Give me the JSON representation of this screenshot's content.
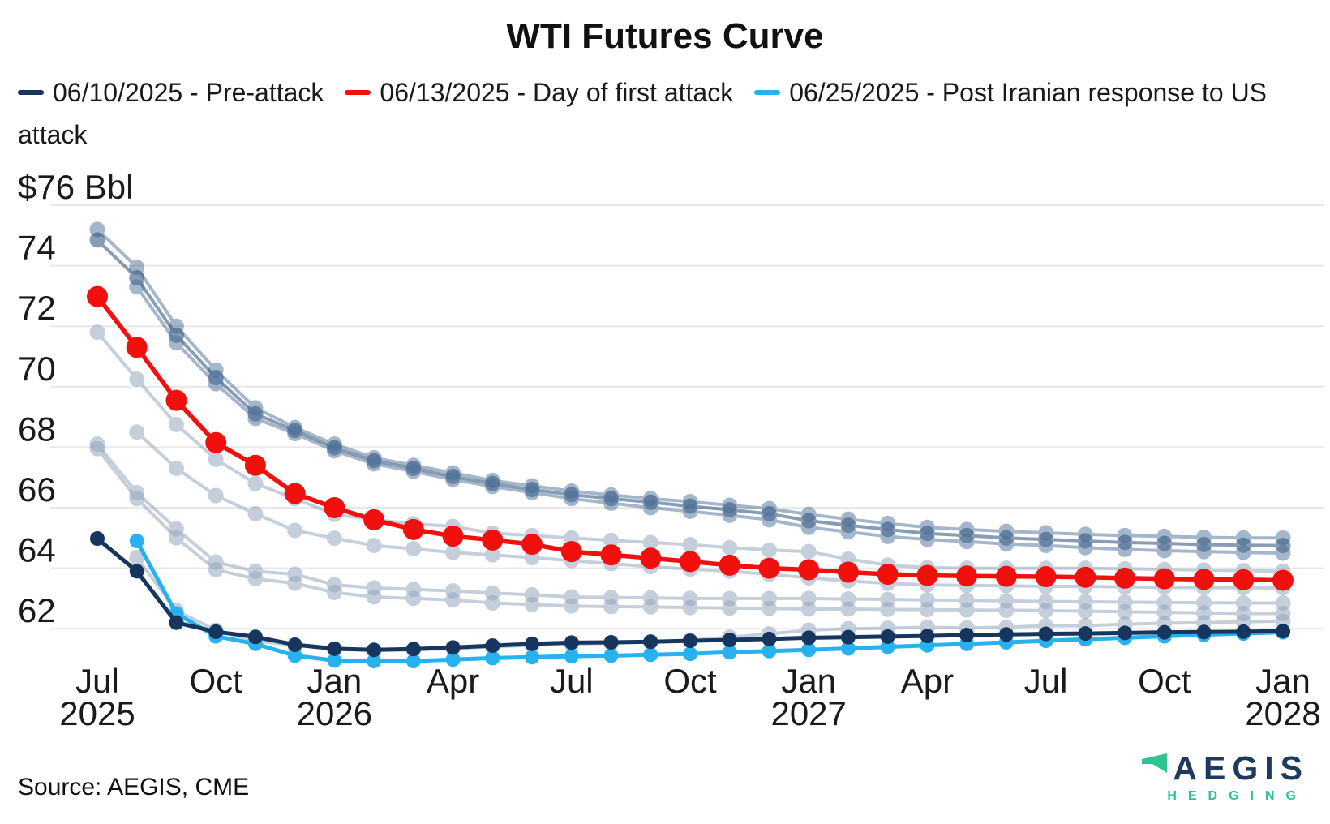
{
  "title": "WTI Futures Curve",
  "legend": {
    "items": [
      {
        "label": "06/10/2025 - Pre-attack",
        "color": "#16365f"
      },
      {
        "label": "06/13/2025 - Day of first attack",
        "color": "#f2100f"
      },
      {
        "label": "06/25/2025 - Post Iranian response to US attack",
        "color": "#27b1ef"
      }
    ]
  },
  "source": "Source: AEGIS, CME",
  "logo": {
    "brand": "AEGIS",
    "subtitle": "HEDGING",
    "brand_color": "#1d3a5f",
    "accent_color": "#2ec48f"
  },
  "chart_data": {
    "type": "line",
    "title": "WTI Futures Curve",
    "ylabel": "$ per Bbl",
    "ylim": [
      60.5,
      76.5
    ],
    "grid": true,
    "legend_position": "top",
    "y_axis": {
      "unit_label": "$76 Bbl",
      "gridline_values": [
        76,
        74,
        72,
        70,
        68,
        66,
        64,
        62
      ],
      "tick_labels": {
        "76": "$76 Bbl",
        "74": "74",
        "72": "72",
        "70": "70",
        "68": "68",
        "66": "66",
        "64": "64",
        "62": "62"
      }
    },
    "x_axis": {
      "categories": [
        "Jul 2025",
        "Aug 2025",
        "Sep 2025",
        "Oct 2025",
        "Nov 2025",
        "Dec 2025",
        "Jan 2026",
        "Feb 2026",
        "Mar 2026",
        "Apr 2026",
        "May 2026",
        "Jun 2026",
        "Jul 2026",
        "Aug 2026",
        "Sep 2026",
        "Oct 2026",
        "Nov 2026",
        "Dec 2026",
        "Jan 2027",
        "Feb 2027",
        "Mar 2027",
        "Apr 2027",
        "May 2027",
        "Jun 2027",
        "Jul 2027",
        "Aug 2027",
        "Sep 2027",
        "Oct 2027",
        "Nov 2027",
        "Dec 2027",
        "Jan 2028"
      ],
      "ticks": [
        {
          "index": 0,
          "month": "Jul",
          "year": "2025"
        },
        {
          "index": 3,
          "month": "Oct"
        },
        {
          "index": 6,
          "month": "Jan",
          "year": "2026"
        },
        {
          "index": 9,
          "month": "Apr"
        },
        {
          "index": 12,
          "month": "Jul"
        },
        {
          "index": 15,
          "month": "Oct"
        },
        {
          "index": 18,
          "month": "Jan",
          "year": "2027"
        },
        {
          "index": 21,
          "month": "Apr"
        },
        {
          "index": 24,
          "month": "Jul"
        },
        {
          "index": 27,
          "month": "Oct"
        },
        {
          "index": 30,
          "month": "Jan",
          "year": "2028"
        }
      ]
    },
    "series": [
      {
        "id": "background-1",
        "label": null,
        "color": "#4a6f99",
        "opacity": 0.5,
        "line_width": 4,
        "marker_radius": 9.5,
        "values": [
          75.2,
          73.95,
          72.0,
          70.55,
          69.3,
          68.65,
          68.1,
          67.65,
          67.4,
          67.15,
          66.9,
          66.72,
          66.55,
          66.42,
          66.3,
          66.2,
          66.08,
          65.97,
          65.78,
          65.62,
          65.48,
          65.35,
          65.28,
          65.22,
          65.17,
          65.12,
          65.08,
          65.05,
          65.02,
          65.0,
          65.0
        ]
      },
      {
        "id": "background-2",
        "label": null,
        "color": "#33567e",
        "opacity": 0.58,
        "line_width": 4,
        "marker_radius": 9.5,
        "values": [
          74.85,
          73.6,
          71.7,
          70.3,
          69.1,
          68.55,
          67.98,
          67.55,
          67.3,
          67.03,
          66.8,
          66.6,
          66.43,
          66.3,
          66.18,
          66.05,
          65.93,
          65.8,
          65.57,
          65.42,
          65.28,
          65.15,
          65.08,
          65.0,
          64.95,
          64.9,
          64.85,
          64.82,
          64.78,
          64.76,
          64.75
        ]
      },
      {
        "id": "background-3",
        "label": null,
        "color": "#4a6f99",
        "opacity": 0.5,
        "line_width": 4,
        "marker_radius": 9.5,
        "values": [
          null,
          73.3,
          71.45,
          70.1,
          68.95,
          68.45,
          67.88,
          67.45,
          67.2,
          66.93,
          66.7,
          66.5,
          66.3,
          66.15,
          66.0,
          65.88,
          65.75,
          65.6,
          65.35,
          65.2,
          65.05,
          64.95,
          64.88,
          64.8,
          64.75,
          64.68,
          64.62,
          64.58,
          64.55,
          64.52,
          64.5
        ]
      },
      {
        "id": "background-4",
        "label": null,
        "color": "#91a4bc",
        "opacity": 0.52,
        "line_width": 4,
        "marker_radius": 9.5,
        "values": [
          71.8,
          70.25,
          68.75,
          67.6,
          66.8,
          66.3,
          65.78,
          65.6,
          65.47,
          65.38,
          65.16,
          65.08,
          65.0,
          64.92,
          64.85,
          64.78,
          64.68,
          64.6,
          64.55,
          64.3,
          64.1,
          64.02,
          64.0,
          64.0,
          64.0,
          64.0,
          63.98,
          63.96,
          63.94,
          63.92,
          63.9
        ]
      },
      {
        "id": "background-5",
        "label": null,
        "color": "#91a4bc",
        "opacity": 0.52,
        "line_width": 4,
        "marker_radius": 9.5,
        "values": [
          null,
          68.5,
          67.3,
          66.4,
          65.8,
          65.25,
          64.99,
          64.75,
          64.64,
          64.52,
          64.44,
          64.35,
          64.25,
          64.15,
          64.05,
          63.97,
          63.9,
          63.8,
          63.68,
          63.58,
          63.5,
          63.45,
          63.43,
          63.42,
          63.4,
          63.4,
          63.38,
          63.37,
          63.36,
          63.35,
          63.35
        ]
      },
      {
        "id": "background-6",
        "label": null,
        "color": "#91a4bc",
        "opacity": 0.52,
        "line_width": 4,
        "marker_radius": 9.5,
        "values": [
          68.1,
          66.5,
          65.3,
          64.2,
          63.9,
          63.8,
          63.45,
          63.35,
          63.3,
          63.25,
          63.18,
          63.12,
          63.05,
          63.03,
          63.02,
          63.0,
          63.0,
          63.0,
          63.0,
          62.98,
          62.97,
          62.95,
          62.94,
          62.92,
          62.9,
          62.89,
          62.88,
          62.87,
          62.86,
          62.85,
          62.85
        ]
      },
      {
        "id": "background-7",
        "label": null,
        "color": "#91a4bc",
        "opacity": 0.52,
        "line_width": 4,
        "marker_radius": 9.5,
        "values": [
          67.95,
          66.3,
          65.0,
          63.95,
          63.65,
          63.5,
          63.2,
          63.05,
          63.0,
          62.95,
          62.85,
          62.8,
          62.75,
          62.73,
          62.72,
          62.7,
          62.68,
          62.67,
          62.65,
          62.65,
          62.64,
          62.63,
          62.62,
          62.61,
          62.6,
          62.58,
          62.56,
          62.54,
          62.52,
          62.5,
          62.5
        ]
      },
      {
        "id": "background-8",
        "label": null,
        "color": "#91a4bc",
        "opacity": 0.52,
        "line_width": 4,
        "marker_radius": 9.5,
        "values": [
          null,
          64.35,
          62.6,
          61.95,
          61.6,
          61.45,
          61.32,
          61.28,
          61.3,
          61.34,
          61.4,
          61.45,
          61.49,
          61.52,
          61.56,
          61.62,
          61.72,
          61.83,
          61.95,
          62.0,
          62.02,
          62.05,
          62.03,
          62.05,
          62.1,
          62.1,
          62.15,
          62.18,
          62.2,
          62.23,
          62.25
        ]
      },
      {
        "id": "day-of-first-attack",
        "label": "06/13/2025 - Day of first attack",
        "color": "#f2100f",
        "opacity": 1,
        "line_width": 5.5,
        "marker_radius": 13,
        "values": [
          72.98,
          71.3,
          69.55,
          68.15,
          67.4,
          66.47,
          66.0,
          65.6,
          65.28,
          65.06,
          64.93,
          64.79,
          64.55,
          64.44,
          64.33,
          64.22,
          64.1,
          64.0,
          63.95,
          63.87,
          63.8,
          63.76,
          63.74,
          63.73,
          63.72,
          63.7,
          63.67,
          63.65,
          63.63,
          63.62,
          63.6
        ]
      },
      {
        "id": "post-iranian-response",
        "label": "06/25/2025 - Post Iranian response to US attack",
        "color": "#27b1ef",
        "opacity": 1,
        "line_width": 5,
        "marker_radius": 9,
        "values": [
          null,
          64.9,
          62.5,
          61.75,
          61.5,
          61.11,
          60.95,
          60.93,
          60.93,
          60.98,
          61.03,
          61.06,
          61.09,
          61.11,
          61.14,
          61.17,
          61.22,
          61.26,
          61.3,
          61.35,
          61.4,
          61.45,
          61.5,
          61.55,
          61.6,
          61.65,
          61.7,
          61.75,
          61.8,
          61.84,
          61.88
        ]
      },
      {
        "id": "pre-attack",
        "label": "06/10/2025 - Pre-attack",
        "color": "#16365f",
        "opacity": 1,
        "line_width": 5,
        "marker_radius": 9,
        "values": [
          64.98,
          63.9,
          62.2,
          61.9,
          61.73,
          61.47,
          61.34,
          61.3,
          61.33,
          61.38,
          61.44,
          61.5,
          61.54,
          61.55,
          61.57,
          61.6,
          61.63,
          61.66,
          61.7,
          61.72,
          61.74,
          61.76,
          61.79,
          61.81,
          61.83,
          61.84,
          61.86,
          61.88,
          61.89,
          61.9,
          61.92
        ]
      }
    ]
  }
}
